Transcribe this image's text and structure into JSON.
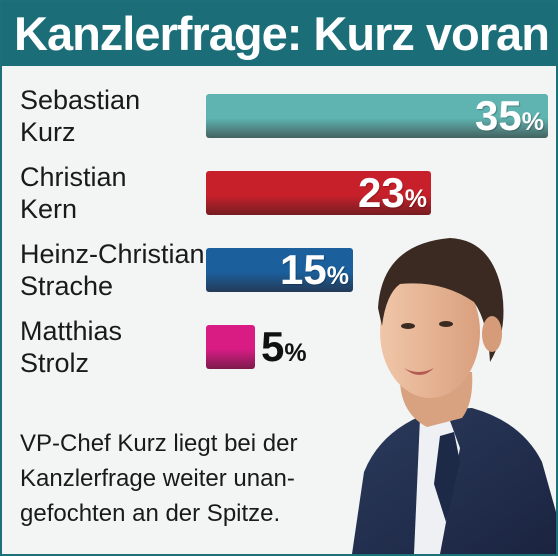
{
  "title": "Kanzlerfrage: Kurz voran",
  "chart_data": {
    "type": "bar",
    "orientation": "horizontal",
    "title": "Kanzlerfrage: Kurz voran",
    "unit": "%",
    "categories": [
      "Sebastian\nKurz",
      "Christian\nKern",
      "Heinz-Christian\nStrache",
      "Matthias\nStrolz"
    ],
    "values": [
      35,
      23,
      15,
      5
    ],
    "value_labels": [
      "35",
      "23",
      "15",
      "5"
    ],
    "colors": [
      "#5fb3b0",
      "#c8202a",
      "#1b5f9c",
      "#d81c84"
    ],
    "xlim": [
      0,
      35
    ]
  },
  "caption": "VP-Chef Kurz liegt bei der\nKanzlerfrage weiter unan-\ngefochten an der Spitze."
}
